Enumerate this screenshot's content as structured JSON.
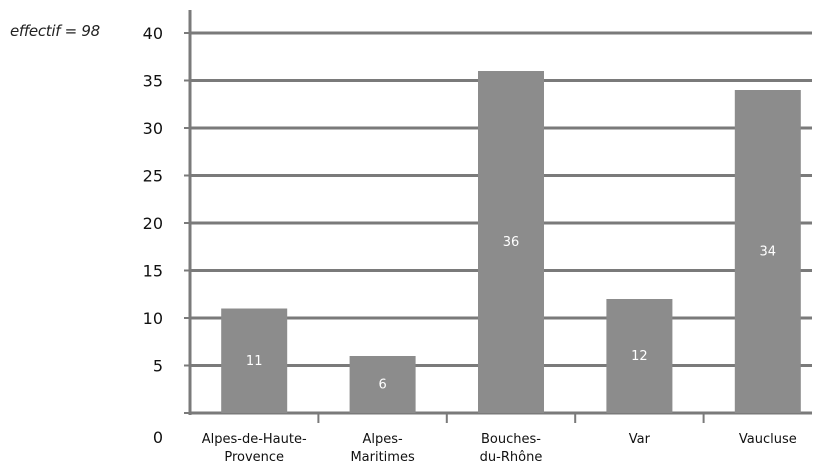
{
  "annotation": "effectif = 98",
  "chart_data": {
    "type": "bar",
    "categories": [
      [
        "Alpes-de-Haute-",
        "Provence"
      ],
      [
        "Alpes-",
        "Maritimes"
      ],
      [
        "Bouches-",
        "du-Rhône"
      ],
      [
        "Var"
      ],
      [
        "Vaucluse"
      ]
    ],
    "values": [
      11,
      6,
      36,
      12,
      34
    ],
    "data_labels": [
      "11",
      "6",
      "36",
      "12",
      "34"
    ],
    "y_ticks": [
      "0",
      "5",
      "10",
      "15",
      "20",
      "25",
      "30",
      "35",
      "40"
    ],
    "ylim": [
      0,
      40
    ],
    "grid": true,
    "legend": "none",
    "title": "",
    "xlabel": "",
    "ylabel": "",
    "colors": {
      "bar": "#8c8c8c",
      "grid": "#7a7a7a",
      "text": "#111111"
    }
  }
}
